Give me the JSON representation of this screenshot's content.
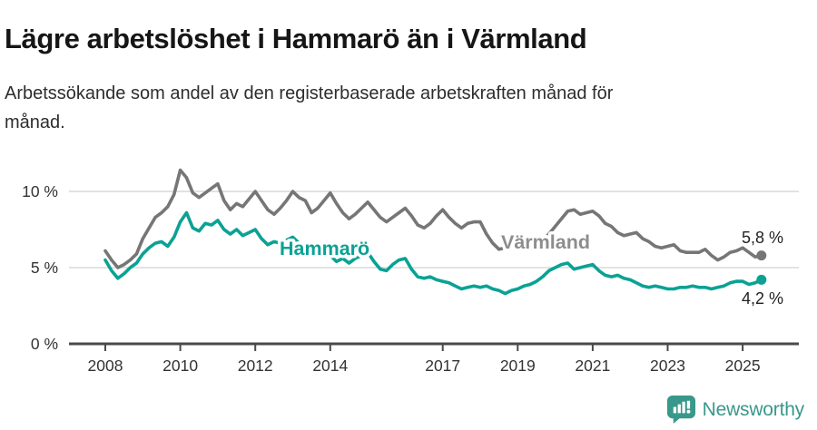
{
  "header": {
    "title": "Lägre arbetslöshet i Hammarö än i Värmland",
    "subtitle": "Arbetssökande som andel av den registerbaserade arbetskraften månad för\nmånad."
  },
  "chart_data": {
    "type": "line",
    "title": "Lägre arbetslöshet i Hammarö än i Värmland",
    "ylabel": "Arbetssökande som andel av den registerbaserade arbetskraften",
    "x_unit": "decimal_year_monthly",
    "x_start": 2008,
    "x_step": 0.166667,
    "x_ticks": [
      2008,
      2010,
      2012,
      2014,
      2017,
      2019,
      2021,
      2023,
      2025
    ],
    "y_ticks": [
      {
        "value": 0,
        "label": "0 %"
      },
      {
        "value": 5,
        "label": "5 %"
      },
      {
        "value": 10,
        "label": "10 %"
      }
    ],
    "ylim": [
      0,
      12.8
    ],
    "grid": "horizontal",
    "legend_position": "inline-labels",
    "series": [
      {
        "name": "Värmland",
        "color": "#767676",
        "label_color": "#8d8d8d",
        "end_label": "5,8 %",
        "end_value": 5.8,
        "values": [
          6.1,
          5.5,
          5.0,
          5.2,
          5.5,
          5.9,
          6.9,
          7.6,
          8.3,
          8.6,
          9.0,
          9.8,
          11.4,
          10.9,
          9.9,
          9.6,
          9.9,
          10.2,
          10.5,
          9.4,
          8.8,
          9.2,
          9.0,
          9.5,
          10.0,
          9.4,
          8.8,
          8.5,
          8.9,
          9.4,
          10.0,
          9.6,
          9.4,
          8.6,
          8.9,
          9.4,
          9.9,
          9.2,
          8.6,
          8.2,
          8.5,
          8.9,
          9.3,
          8.8,
          8.3,
          8.0,
          8.3,
          8.6,
          8.9,
          8.4,
          7.8,
          7.6,
          7.9,
          8.4,
          8.8,
          8.3,
          7.9,
          7.6,
          7.9,
          8.0,
          8.0,
          7.2,
          6.6,
          6.2,
          6.3,
          6.5,
          6.6,
          6.3,
          6.2,
          6.4,
          6.8,
          7.2,
          7.7,
          8.2,
          8.7,
          8.8,
          8.5,
          8.6,
          8.7,
          8.4,
          7.9,
          7.7,
          7.3,
          7.1,
          7.2,
          7.3,
          6.9,
          6.7,
          6.4,
          6.3,
          6.4,
          6.5,
          6.1,
          6.0,
          6.0,
          6.0,
          6.2,
          5.8,
          5.5,
          5.7,
          6.0,
          6.1,
          6.3,
          6.0,
          5.7,
          5.8
        ]
      },
      {
        "name": "Hammarö",
        "color": "#0aa294",
        "label_color": "#0aa294",
        "end_label": "4,2 %",
        "end_value": 4.2,
        "values": [
          5.5,
          4.8,
          4.3,
          4.6,
          5.0,
          5.3,
          5.9,
          6.3,
          6.6,
          6.7,
          6.4,
          7.0,
          8.0,
          8.6,
          7.6,
          7.4,
          7.9,
          7.8,
          8.1,
          7.5,
          7.2,
          7.5,
          7.1,
          7.3,
          7.5,
          6.9,
          6.5,
          6.7,
          6.6,
          6.8,
          7.0,
          6.6,
          6.3,
          6.1,
          6.0,
          5.9,
          5.8,
          5.4,
          5.6,
          5.3,
          5.6,
          5.8,
          6.0,
          5.4,
          4.9,
          4.8,
          5.2,
          5.5,
          5.6,
          4.9,
          4.4,
          4.3,
          4.4,
          4.2,
          4.1,
          4.0,
          3.8,
          3.6,
          3.7,
          3.8,
          3.7,
          3.8,
          3.6,
          3.5,
          3.3,
          3.5,
          3.6,
          3.8,
          3.9,
          4.1,
          4.4,
          4.8,
          5.0,
          5.2,
          5.3,
          4.9,
          5.0,
          5.1,
          5.2,
          4.8,
          4.5,
          4.4,
          4.5,
          4.3,
          4.2,
          4.0,
          3.8,
          3.7,
          3.8,
          3.7,
          3.6,
          3.6,
          3.7,
          3.7,
          3.8,
          3.7,
          3.7,
          3.6,
          3.7,
          3.8,
          4.0,
          4.1,
          4.1,
          3.9,
          4.0,
          4.2
        ]
      }
    ]
  },
  "footer": {
    "brand": "Newsworthy",
    "brand_color": "#38988b"
  }
}
